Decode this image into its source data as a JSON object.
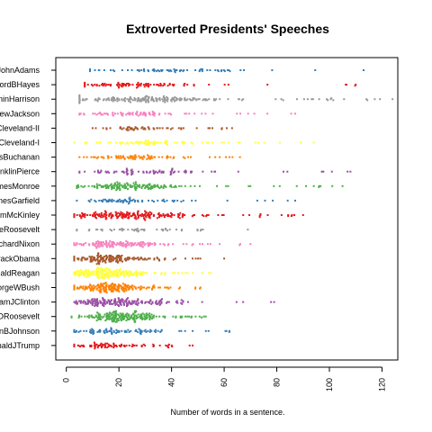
{
  "chart_data": {
    "type": "scatter",
    "title": "Extroverted Presidents' Speeches",
    "xlabel": "Number of words in a sentence.",
    "ylabel": "",
    "xlim": [
      -4,
      126
    ],
    "x_ticks": [
      0,
      20,
      40,
      60,
      80,
      100,
      120
    ],
    "grid": false,
    "legend": "none",
    "series": [
      {
        "name": "JohnAdams",
        "color": "#377eb8",
        "min": 9,
        "max": 113,
        "count": 70,
        "peak": 30,
        "spread": 20
      },
      {
        "name": "RutherfordBHayes",
        "color": "#e41a1c",
        "min": 7,
        "max": 110,
        "count": 90,
        "peak": 22,
        "spread": 15
      },
      {
        "name": "BenjaminHarrison",
        "color": "#999999",
        "min": 5,
        "max": 124,
        "count": 180,
        "peak": 24,
        "spread": 16
      },
      {
        "name": "AndrewJackson",
        "color": "#f781bf",
        "min": 5,
        "max": 87,
        "count": 80,
        "peak": 22,
        "spread": 14
      },
      {
        "name": "GroverCleveland-II",
        "color": "#a65628",
        "min": 10,
        "max": 63,
        "count": 55,
        "peak": 25,
        "spread": 12
      },
      {
        "name": "GroverCleveland-I",
        "color": "#ffff33",
        "min": 3,
        "max": 94,
        "count": 75,
        "peak": 25,
        "spread": 16
      },
      {
        "name": "JamesBuchanan",
        "color": "#ff7f00",
        "min": 5,
        "max": 66,
        "count": 80,
        "peak": 22,
        "spread": 13
      },
      {
        "name": "FranklinPierce",
        "color": "#984ea3",
        "min": 5,
        "max": 108,
        "count": 80,
        "peak": 22,
        "spread": 15
      },
      {
        "name": "JamesMonroe",
        "color": "#4daf4a",
        "min": 4,
        "max": 105,
        "count": 160,
        "peak": 22,
        "spread": 14
      },
      {
        "name": "JamesGarfield",
        "color": "#377eb8",
        "min": 4,
        "max": 87,
        "count": 70,
        "peak": 20,
        "spread": 13
      },
      {
        "name": "WilliamMcKinley",
        "color": "#e41a1c",
        "min": 3,
        "max": 90,
        "count": 200,
        "peak": 20,
        "spread": 14
      },
      {
        "name": "TheodoreRoosevelt",
        "color": "#999999",
        "min": 4,
        "max": 69,
        "count": 45,
        "peak": 20,
        "spread": 12
      },
      {
        "name": "RichardNixon",
        "color": "#f781bf",
        "min": 3,
        "max": 70,
        "count": 140,
        "peak": 15,
        "spread": 11
      },
      {
        "name": "BarackObama",
        "color": "#a65628",
        "min": 3,
        "max": 60,
        "count": 150,
        "peak": 14,
        "spread": 10
      },
      {
        "name": "RonaldReagan",
        "color": "#ffff33",
        "min": 3,
        "max": 55,
        "count": 190,
        "peak": 13,
        "spread": 9
      },
      {
        "name": "GeorgeWBush",
        "color": "#ff7f00",
        "min": 3,
        "max": 51,
        "count": 170,
        "peak": 15,
        "spread": 9
      },
      {
        "name": "WilliamJClinton",
        "color": "#984ea3",
        "min": 3,
        "max": 79,
        "count": 180,
        "peak": 16,
        "spread": 11
      },
      {
        "name": "FranklinDRoosevelt",
        "color": "#4daf4a",
        "min": 2,
        "max": 53,
        "count": 200,
        "peak": 17,
        "spread": 10
      },
      {
        "name": "LyndonBJohnson",
        "color": "#377eb8",
        "min": 3,
        "max": 62,
        "count": 90,
        "peak": 15,
        "spread": 10
      },
      {
        "name": "DonaldJTrump",
        "color": "#e41a1c",
        "min": 3,
        "max": 48,
        "count": 80,
        "peak": 13,
        "spread": 8
      }
    ]
  }
}
